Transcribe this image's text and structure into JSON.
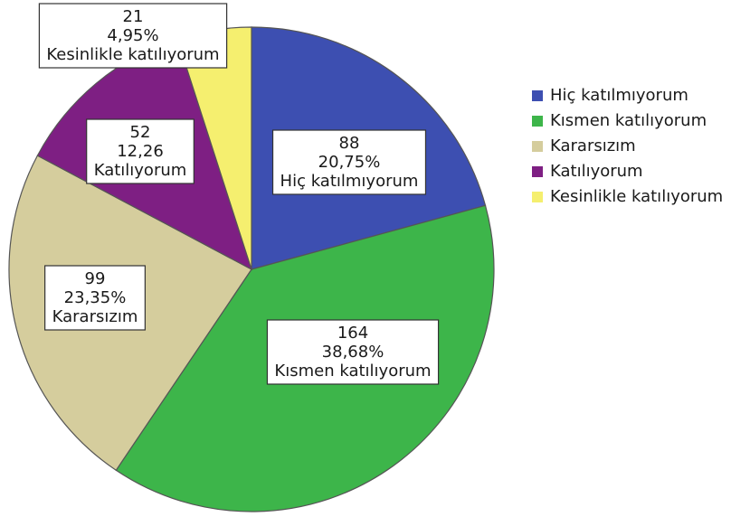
{
  "chart_data": {
    "type": "pie",
    "categories": [
      "Hiç katılmıyorum",
      "Kısmen katılıyorum",
      "Kararsızım",
      "Katılıyorum",
      "Kesinlikle katılıyorum"
    ],
    "values": [
      88,
      164,
      99,
      52,
      21
    ],
    "percent_labels": [
      "20,75%",
      "38,68%",
      "23,35%",
      "12,26",
      "4,95%"
    ],
    "colors": [
      "#3d4fb1",
      "#3db54a",
      "#d5cd9d",
      "#7e1f83",
      "#f5ef6f"
    ],
    "legend": "right"
  }
}
